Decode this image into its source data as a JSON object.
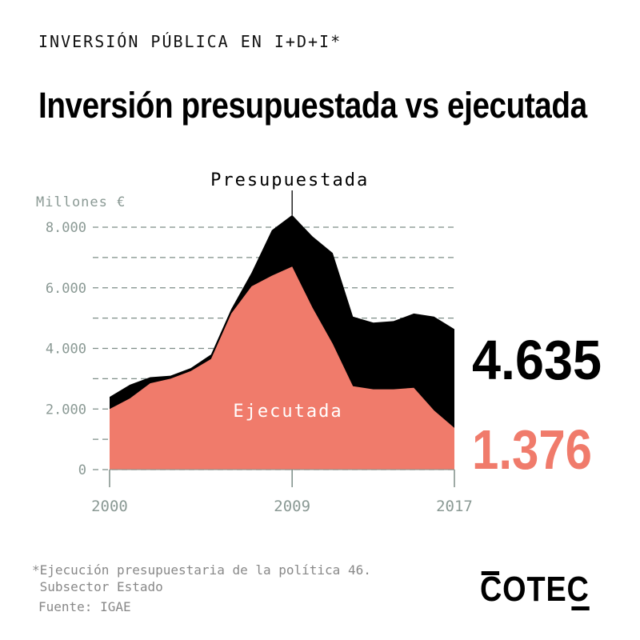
{
  "header": {
    "kicker": "INVERSIÓN PÚBLICA EN I+D+I*",
    "title": "Inversión presupuestada vs ejecutada"
  },
  "footer": {
    "footnote": "*Ejecución presupuestaria de la política 46.\n Subsector Estado",
    "source": "Fuente: IGAE",
    "logo": "COTEC"
  },
  "colors": {
    "presupuestada": "#000000",
    "ejecutada": "#f07b6b",
    "grid": "#7d8d87",
    "tick_text": "#8a9994"
  },
  "chart_data": {
    "type": "area",
    "ylabel": "Millones €",
    "ylim": [
      0,
      8000
    ],
    "yticks": [
      0,
      2000,
      4000,
      6000,
      8000
    ],
    "ytick_labels": [
      "0",
      "2.000",
      "4.000",
      "6.000",
      "8.000"
    ],
    "xtick_labels": [
      "2000",
      "2009",
      "2017"
    ],
    "grid": true,
    "x": [
      2000,
      2001,
      2002,
      2003,
      2004,
      2005,
      2006,
      2007,
      2008,
      2009,
      2010,
      2011,
      2012,
      2013,
      2014,
      2015,
      2016,
      2017
    ],
    "series": [
      {
        "name": "Presupuestada",
        "values": [
          2400,
          2800,
          3050,
          3100,
          3350,
          3800,
          5300,
          6500,
          7900,
          8400,
          7700,
          7150,
          5050,
          4850,
          4900,
          5150,
          5050,
          4635
        ]
      },
      {
        "name": "Ejecutada",
        "values": [
          2000,
          2350,
          2850,
          3000,
          3250,
          3650,
          5150,
          6050,
          6400,
          6700,
          5350,
          4150,
          2750,
          2650,
          2650,
          2700,
          1950,
          1376
        ]
      }
    ],
    "end_labels": {
      "presupuestada": "4.635",
      "ejecutada": "1.376"
    }
  }
}
